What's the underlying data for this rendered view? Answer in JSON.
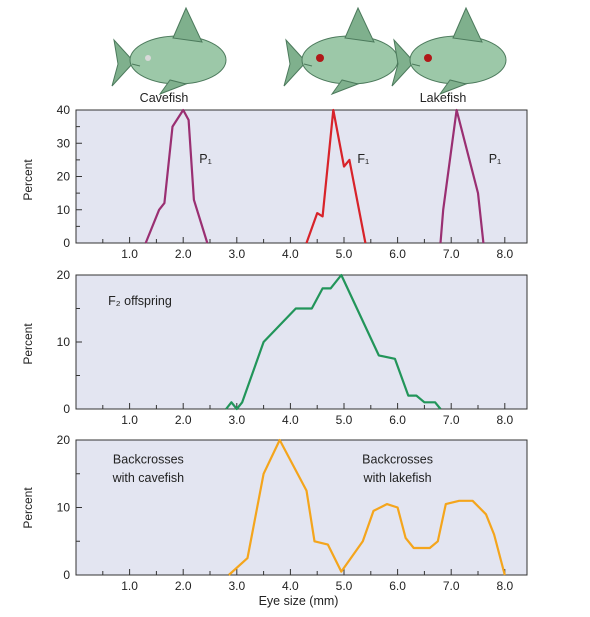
{
  "header": {
    "fish": [
      {
        "label": "Cavefish",
        "body": "#9cc8a8",
        "eye": "#d9d9d9"
      },
      {
        "label": "",
        "body": "#9cc8a8",
        "eye": "#b01818"
      },
      {
        "label": "Lakefish",
        "body": "#9cc8a8",
        "eye": "#b01818"
      }
    ]
  },
  "colors": {
    "panel_bg": "#e3e5f1",
    "p1": "#9a2f72",
    "f1": "#d8232a",
    "f2": "#22955a",
    "back": "#f4a51c"
  },
  "chart_data": [
    {
      "type": "line",
      "ylabel": "Percent",
      "xlim": [
        0,
        8.0
      ],
      "ylim": [
        0,
        40
      ],
      "xticks": [
        "1.0",
        "2.0",
        "3.0",
        "4.0",
        "5.0",
        "6.0",
        "7.0",
        "8.0"
      ],
      "yticks": [
        "0",
        "10",
        "20",
        "30",
        "40"
      ],
      "series": [
        {
          "name": "P1",
          "color": "#9a2f72",
          "points": [
            [
              1.3,
              0
            ],
            [
              1.55,
              10
            ],
            [
              1.65,
              12
            ],
            [
              1.8,
              35
            ],
            [
              2.0,
              40
            ],
            [
              2.1,
              37
            ],
            [
              2.2,
              13
            ],
            [
              2.45,
              0
            ]
          ]
        },
        {
          "name": "F1",
          "color": "#d8232a",
          "points": [
            [
              4.3,
              0
            ],
            [
              4.5,
              9
            ],
            [
              4.6,
              8
            ],
            [
              4.8,
              40
            ],
            [
              5.0,
              23
            ],
            [
              5.1,
              25
            ],
            [
              5.4,
              0
            ]
          ]
        },
        {
          "name": "P1",
          "color": "#9a2f72",
          "points": [
            [
              6.8,
              0
            ],
            [
              6.85,
              10
            ],
            [
              7.1,
              40
            ],
            [
              7.5,
              15
            ],
            [
              7.6,
              0
            ]
          ]
        }
      ],
      "annotations": [
        {
          "text": "P₁",
          "x": 2.3,
          "y": 24
        },
        {
          "text": "F₁",
          "x": 5.25,
          "y": 24
        },
        {
          "text": "P₁",
          "x": 7.7,
          "y": 24
        }
      ]
    },
    {
      "type": "line",
      "ylabel": "Percent",
      "xlim": [
        0,
        8.0
      ],
      "ylim": [
        0,
        20
      ],
      "xticks": [
        "1.0",
        "2.0",
        "3.0",
        "4.0",
        "5.0",
        "6.0",
        "7.0",
        "8.0"
      ],
      "yticks": [
        "0",
        "10",
        "20"
      ],
      "series": [
        {
          "name": "F₂ offspring",
          "color": "#22955a",
          "points": [
            [
              2.8,
              0
            ],
            [
              2.9,
              1
            ],
            [
              3.0,
              0
            ],
            [
              3.1,
              1
            ],
            [
              3.5,
              10
            ],
            [
              4.1,
              15
            ],
            [
              4.4,
              15
            ],
            [
              4.6,
              18
            ],
            [
              4.75,
              18
            ],
            [
              4.95,
              20
            ],
            [
              5.65,
              8
            ],
            [
              5.95,
              7.5
            ],
            [
              6.2,
              2
            ],
            [
              6.35,
              2
            ],
            [
              6.5,
              1
            ],
            [
              6.7,
              1
            ],
            [
              6.8,
              0
            ]
          ]
        }
      ],
      "annotations": [
        {
          "text": "F₂ offspring",
          "x": 0.6,
          "y": 15.5
        }
      ]
    },
    {
      "type": "line",
      "ylabel": "Percent",
      "xlabel": "Eye size (mm)",
      "xlim": [
        0,
        8.0
      ],
      "ylim": [
        0,
        20
      ],
      "xticks": [
        "1.0",
        "2.0",
        "3.0",
        "4.0",
        "5.0",
        "6.0",
        "7.0",
        "8.0"
      ],
      "yticks": [
        "0",
        "10",
        "20"
      ],
      "series": [
        {
          "name": "Backcrosses with cavefish",
          "color": "#f4a51c",
          "points": [
            [
              2.85,
              0
            ],
            [
              3.2,
              2.5
            ],
            [
              3.5,
              15
            ],
            [
              3.8,
              20
            ],
            [
              4.3,
              12.5
            ],
            [
              4.45,
              5
            ],
            [
              4.7,
              4.5
            ],
            [
              4.95,
              0.5
            ],
            [
              5.35,
              5
            ],
            [
              5.55,
              9.5
            ],
            [
              5.8,
              10.5
            ],
            [
              6.0,
              10
            ],
            [
              6.15,
              5.5
            ],
            [
              6.3,
              4
            ],
            [
              6.6,
              4
            ],
            [
              6.75,
              5
            ],
            [
              6.9,
              10.5
            ],
            [
              7.15,
              11
            ],
            [
              7.4,
              11
            ],
            [
              7.65,
              9
            ],
            [
              7.8,
              6
            ],
            [
              8.0,
              0
            ]
          ]
        }
      ],
      "annotations": [
        {
          "text": "Backcrosses",
          "x": 1.35,
          "y": 16.5
        },
        {
          "text": "with cavefish",
          "x": 1.35,
          "y": 13.8
        },
        {
          "text": "Backcrosses",
          "x": 6.0,
          "y": 16.5
        },
        {
          "text": "with lakefish",
          "x": 6.0,
          "y": 13.8
        }
      ]
    }
  ]
}
